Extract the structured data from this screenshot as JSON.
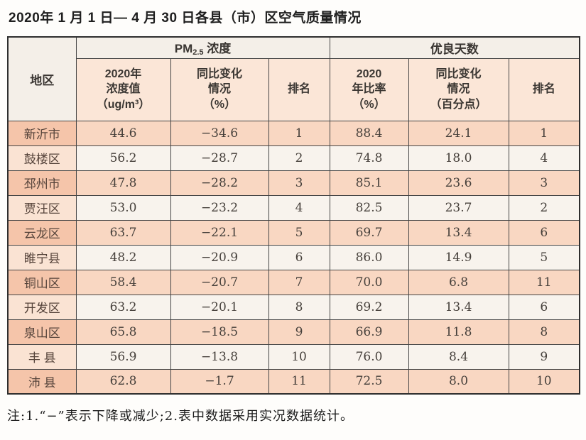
{
  "page": {
    "title": "2020年 1 月 1 日— 4 月 30 日各县（市）区空气质量情况",
    "note": "注:1.“−”表示下降或减少;2.表中数据采用实况数据统计。"
  },
  "colors": {
    "row_odd_region_bg": "#f5c5aa",
    "row_odd_cell_bg": "#f9d7c2",
    "row_even_region_bg": "#fae3d3",
    "row_even_cell_bg": "#f8f3ed",
    "header_group_bg": "#f4efe8",
    "header_sub_bg": "#fbe6d7",
    "border": "#454545",
    "text": "#46403b"
  },
  "table": {
    "region_header": "地区",
    "pm_group": {
      "base": "PM",
      "sub": "2.5",
      "suffix": " 浓度"
    },
    "good_group": "优良天数",
    "sub_headers": [
      "2020年\n浓度值\n（ug/m³）",
      "同比变化\n情况\n（%）",
      "排名",
      "2020\n年比率\n（%）",
      "同比变化\n情况\n（百分点）",
      "排名"
    ],
    "rows": [
      [
        "新沂市",
        "44.6",
        "−34.6",
        "1",
        "88.4",
        "24.1",
        "1"
      ],
      [
        "鼓楼区",
        "56.2",
        "−28.7",
        "2",
        "74.8",
        "18.0",
        "4"
      ],
      [
        "邳州市",
        "47.8",
        "−28.2",
        "3",
        "85.1",
        "23.6",
        "3"
      ],
      [
        "贾汪区",
        "53.0",
        "−23.2",
        "4",
        "82.5",
        "23.7",
        "2"
      ],
      [
        "云龙区",
        "63.7",
        "−22.1",
        "5",
        "69.7",
        "13.4",
        "6"
      ],
      [
        "睢宁县",
        "48.2",
        "−20.9",
        "6",
        "86.0",
        "14.9",
        "5"
      ],
      [
        "铜山区",
        "58.4",
        "−20.7",
        "7",
        "70.0",
        "6.8",
        "11"
      ],
      [
        "开发区",
        "63.2",
        "−20.1",
        "8",
        "69.2",
        "13.4",
        "6"
      ],
      [
        "泉山区",
        "65.8",
        "−18.5",
        "9",
        "66.9",
        "11.8",
        "8"
      ],
      [
        "丰 县",
        "56.9",
        "−13.8",
        "10",
        "76.0",
        "8.4",
        "9"
      ],
      [
        "沛 县",
        "62.8",
        "−1.7",
        "11",
        "72.5",
        "8.0",
        "10"
      ]
    ]
  }
}
